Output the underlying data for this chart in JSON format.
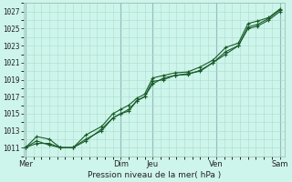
{
  "title": "",
  "xlabel": "Pression niveau de la mer( hPa )",
  "bg_color": "#cef5eb",
  "plot_bg_color": "#cef5eb",
  "grid_color_minor": "#aaddcc",
  "grid_color_major": "#aaddcc",
  "line_color": "#1a5c2a",
  "ylim": [
    1010.0,
    1028.0
  ],
  "yticks": [
    1011,
    1013,
    1015,
    1017,
    1019,
    1021,
    1023,
    1025,
    1027
  ],
  "xtick_labels": [
    "Mer",
    "",
    "Dim",
    "Jeu",
    "",
    "Ven",
    "",
    "Sam"
  ],
  "xtick_positions": [
    0,
    1,
    3,
    4,
    5,
    6,
    7,
    8
  ],
  "day_vlines": [
    0,
    3,
    4,
    6,
    8
  ],
  "day_vline_color": "#7799aa",
  "xlim": [
    -0.05,
    8.15
  ],
  "series1_x": [
    0.0,
    0.35,
    0.75,
    1.1,
    1.5,
    1.9,
    2.4,
    2.75,
    3.0,
    3.25,
    3.5,
    3.75,
    4.0,
    4.35,
    4.7,
    5.1,
    5.5,
    5.9,
    6.3,
    6.7,
    7.0,
    7.3,
    7.65,
    8.0
  ],
  "series1_y": [
    1011.0,
    1011.8,
    1011.3,
    1011.0,
    1011.0,
    1011.8,
    1013.2,
    1014.5,
    1015.0,
    1015.3,
    1016.5,
    1017.0,
    1018.5,
    1019.2,
    1019.5,
    1019.6,
    1020.1,
    1021.0,
    1022.3,
    1023.0,
    1025.2,
    1025.5,
    1026.2,
    1027.2
  ],
  "series2_x": [
    0.0,
    0.35,
    0.75,
    1.1,
    1.5,
    1.9,
    2.4,
    2.75,
    3.0,
    3.25,
    3.5,
    3.75,
    4.0,
    4.35,
    4.7,
    5.1,
    5.5,
    5.9,
    6.3,
    6.7,
    7.0,
    7.3,
    7.65,
    8.0
  ],
  "series2_y": [
    1011.0,
    1012.3,
    1012.0,
    1011.0,
    1011.0,
    1012.5,
    1013.5,
    1015.0,
    1015.5,
    1016.0,
    1016.8,
    1017.3,
    1019.2,
    1019.5,
    1019.8,
    1019.9,
    1020.5,
    1021.3,
    1022.8,
    1023.3,
    1025.6,
    1025.9,
    1026.3,
    1027.3
  ],
  "series3_x": [
    0.0,
    0.35,
    0.75,
    1.1,
    1.5,
    1.9,
    2.4,
    2.75,
    3.0,
    3.25,
    3.5,
    3.75,
    4.0,
    4.35,
    4.7,
    5.1,
    5.5,
    5.9,
    6.3,
    6.7,
    7.0,
    7.3,
    7.65,
    8.0
  ],
  "series3_y": [
    1011.0,
    1011.5,
    1011.5,
    1011.0,
    1011.0,
    1012.0,
    1013.0,
    1014.5,
    1015.0,
    1015.5,
    1016.5,
    1017.0,
    1018.8,
    1019.0,
    1019.5,
    1019.7,
    1020.0,
    1021.0,
    1022.0,
    1023.0,
    1025.0,
    1025.3,
    1026.0,
    1027.0
  ]
}
